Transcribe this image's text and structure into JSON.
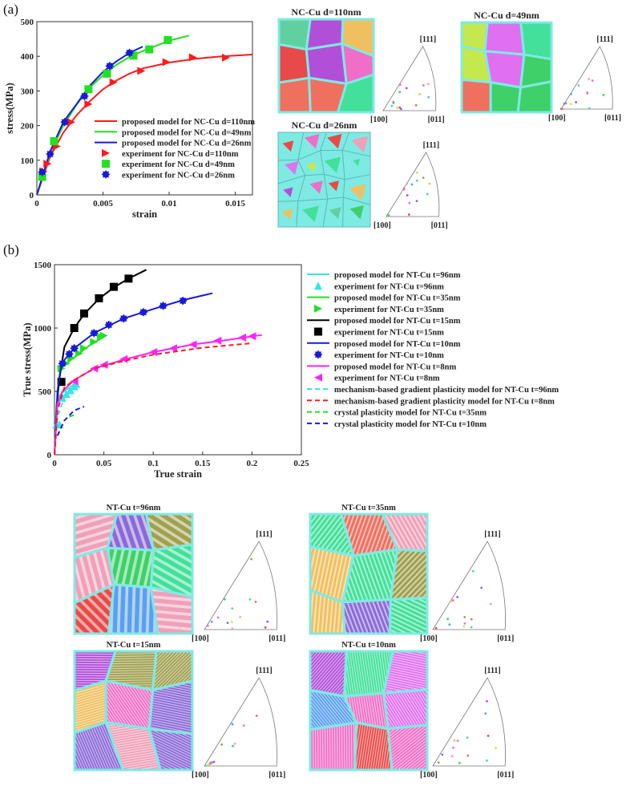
{
  "panel_labels": [
    "(a)",
    "(b)"
  ],
  "chart_data": [
    {
      "type": "line",
      "xlabel": "strain",
      "ylabel": "stress(MPa)",
      "xlim": [
        0,
        0.0163
      ],
      "ylim": [
        0,
        500
      ],
      "xticks": [
        "0",
        "0.005",
        "0.01",
        "0.015"
      ],
      "xtickvals": [
        0,
        0.005,
        0.01,
        0.015
      ],
      "yticks": [
        "0",
        "100",
        "200",
        "300",
        "400",
        "500"
      ],
      "ytickvals": [
        0,
        100,
        200,
        300,
        400,
        500
      ],
      "legend": "center-right",
      "series": [
        {
          "name": "proposed model for NC-Cu d=110nm",
          "style": "line",
          "color": "#ff1a1a",
          "points": [
            [
              0,
              0
            ],
            [
              0.001,
              110
            ],
            [
              0.002,
              180
            ],
            [
              0.003,
              230
            ],
            [
              0.004,
              270
            ],
            [
              0.005,
              305
            ],
            [
              0.006,
              330
            ],
            [
              0.007,
              350
            ],
            [
              0.008,
              365
            ],
            [
              0.01,
              382
            ],
            [
              0.012,
              393
            ],
            [
              0.014,
              400
            ],
            [
              0.0163,
              405
            ]
          ]
        },
        {
          "name": "proposed model for NC-Cu d=49nm",
          "style": "line",
          "color": "#22e022",
          "points": [
            [
              0,
              0
            ],
            [
              0.001,
              120
            ],
            [
              0.002,
              200
            ],
            [
              0.003,
              260
            ],
            [
              0.004,
              310
            ],
            [
              0.005,
              345
            ],
            [
              0.006,
              375
            ],
            [
              0.007,
              398
            ],
            [
              0.008,
              415
            ],
            [
              0.009,
              430
            ],
            [
              0.01,
              445
            ],
            [
              0.0115,
              460
            ]
          ]
        },
        {
          "name": "proposed model for NC-Cu d=26nm",
          "style": "line",
          "color": "#1a1ad8",
          "points": [
            [
              0,
              0
            ],
            [
              0.001,
              125
            ],
            [
              0.002,
              210
            ],
            [
              0.003,
              262
            ],
            [
              0.004,
              315
            ],
            [
              0.005,
              355
            ],
            [
              0.006,
              385
            ],
            [
              0.007,
              410
            ],
            [
              0.008,
              428
            ]
          ]
        },
        {
          "name": "experiment for NC-Cu d=110nm",
          "style": "tri-right",
          "color": "#ff1a1a",
          "points": [
            [
              0.0005,
              68
            ],
            [
              0.0008,
              90
            ],
            [
              0.0015,
              140
            ],
            [
              0.0026,
              210
            ],
            [
              0.0039,
              262
            ],
            [
              0.0058,
              325
            ],
            [
              0.0079,
              358
            ],
            [
              0.0098,
              383
            ],
            [
              0.0118,
              397
            ],
            [
              0.0143,
              396
            ]
          ]
        },
        {
          "name": "experiment for NC-Cu d=49nm",
          "style": "square",
          "color": "#22e022",
          "points": [
            [
              0.0004,
              52
            ],
            [
              0.0013,
              155
            ],
            [
              0.0039,
              305
            ],
            [
              0.0053,
              350
            ],
            [
              0.0073,
              402
            ],
            [
              0.0085,
              420
            ],
            [
              0.0099,
              447
            ]
          ]
        },
        {
          "name": "experiment for NC-Cu d=26nm",
          "style": "star",
          "color": "#1a1ad8",
          "points": [
            [
              0.0004,
              66
            ],
            [
              0.001,
              118
            ],
            [
              0.0021,
              210
            ],
            [
              0.0036,
              285
            ],
            [
              0.0055,
              372
            ],
            [
              0.007,
              410
            ]
          ]
        }
      ]
    },
    {
      "type": "line",
      "xlabel": "True strain",
      "ylabel": "True stress(MPa)",
      "xlim": [
        0,
        0.25
      ],
      "ylim": [
        0,
        1500
      ],
      "xticks": [
        "0",
        "0.05",
        "0.1",
        "0.15",
        "0.2",
        "0.25"
      ],
      "xtickvals": [
        0,
        0.05,
        0.1,
        0.15,
        0.2,
        0.25
      ],
      "yticks": [
        "0",
        "500",
        "1000",
        "1500"
      ],
      "ytickvals": [
        0,
        500,
        1000,
        1500
      ],
      "legend": "outside-right",
      "series": [
        {
          "name": "proposed model for NT-Cu t=96nm",
          "style": "line",
          "color": "#33e6e6",
          "points": [
            [
              0,
              0
            ],
            [
              0.002,
              400
            ],
            [
              0.005,
              470
            ],
            [
              0.01,
              500
            ],
            [
              0.02,
              560
            ]
          ]
        },
        {
          "name": "experiment for NT-Cu t=96nm",
          "style": "tri-up",
          "color": "#33e6e6",
          "points": [
            [
              0.002,
              240
            ],
            [
              0.005,
              240
            ],
            [
              0.008,
              450
            ],
            [
              0.012,
              480
            ],
            [
              0.016,
              510
            ],
            [
              0.02,
              540
            ],
            [
              0.022,
              560
            ]
          ]
        },
        {
          "name": "proposed model for NT-Cu t=35nm",
          "style": "line",
          "color": "#22e022",
          "points": [
            [
              0,
              0
            ],
            [
              0.003,
              500
            ],
            [
              0.006,
              680
            ],
            [
              0.02,
              770
            ],
            [
              0.035,
              860
            ],
            [
              0.052,
              940
            ]
          ]
        },
        {
          "name": "experiment for NT-Cu t=35nm",
          "style": "tri-right",
          "color": "#22e022",
          "points": [
            [
              0.007,
              680
            ],
            [
              0.012,
              720
            ],
            [
              0.017,
              760
            ],
            [
              0.025,
              800
            ],
            [
              0.03,
              840
            ],
            [
              0.04,
              890
            ],
            [
              0.047,
              930
            ],
            [
              0.05,
              940
            ]
          ]
        },
        {
          "name": "proposed model for NT-Cu t=15nm",
          "style": "line",
          "color": "#000000",
          "points": [
            [
              0,
              0
            ],
            [
              0.003,
              450
            ],
            [
              0.005,
              600
            ],
            [
              0.01,
              850
            ],
            [
              0.02,
              1000
            ],
            [
              0.03,
              1110
            ],
            [
              0.045,
              1230
            ],
            [
              0.06,
              1320
            ],
            [
              0.075,
              1390
            ],
            [
              0.093,
              1460
            ]
          ]
        },
        {
          "name": "experiment for NT-Cu t=15nm",
          "style": "square",
          "color": "#000000",
          "points": [
            [
              0.007,
              575
            ],
            [
              0.02,
              1000
            ],
            [
              0.03,
              1115
            ],
            [
              0.045,
              1235
            ],
            [
              0.06,
              1325
            ],
            [
              0.075,
              1390
            ]
          ]
        },
        {
          "name": "proposed model for NT-Cu t=10nm",
          "style": "line",
          "color": "#1a1ad8",
          "points": [
            [
              0,
              0
            ],
            [
              0.003,
              500
            ],
            [
              0.007,
              720
            ],
            [
              0.02,
              840
            ],
            [
              0.04,
              960
            ],
            [
              0.07,
              1075
            ],
            [
              0.1,
              1150
            ],
            [
              0.13,
              1220
            ],
            [
              0.16,
              1275
            ]
          ]
        },
        {
          "name": "experiment for NT-Cu t=10nm",
          "style": "star",
          "color": "#1a1ad8",
          "points": [
            [
              0.008,
              720
            ],
            [
              0.015,
              795
            ],
            [
              0.02,
              840
            ],
            [
              0.04,
              960
            ],
            [
              0.055,
              1025
            ],
            [
              0.07,
              1075
            ],
            [
              0.09,
              1125
            ],
            [
              0.11,
              1175
            ],
            [
              0.13,
              1215
            ]
          ]
        },
        {
          "name": "proposed model for NT-Cu t=8nm",
          "style": "line",
          "color": "#ff22ff",
          "points": [
            [
              0,
              0
            ],
            [
              0.003,
              400
            ],
            [
              0.008,
              500
            ],
            [
              0.02,
              590
            ],
            [
              0.04,
              680
            ],
            [
              0.07,
              750
            ],
            [
              0.1,
              810
            ],
            [
              0.14,
              870
            ],
            [
              0.17,
              900
            ],
            [
              0.21,
              945
            ]
          ]
        },
        {
          "name": "experiment for NT-Cu t=8nm",
          "style": "tri-left",
          "color": "#ff22ff",
          "points": [
            [
              0.02,
              580
            ],
            [
              0.04,
              680
            ],
            [
              0.05,
              710
            ],
            [
              0.07,
              755
            ],
            [
              0.1,
              810
            ],
            [
              0.12,
              840
            ],
            [
              0.14,
              870
            ],
            [
              0.165,
              900
            ],
            [
              0.19,
              925
            ],
            [
              0.2,
              935
            ]
          ]
        },
        {
          "name": "mechanism-based gradient plasticity model for NT-Cu t=96nm",
          "style": "dash",
          "color": "#33e6e6",
          "points": [
            [
              0,
              0
            ],
            [
              0.003,
              300
            ],
            [
              0.01,
              450
            ],
            [
              0.02,
              520
            ]
          ]
        },
        {
          "name": "mechanism-based gradient plasticity model for NT-Cu t=8nm",
          "style": "dash",
          "color": "#ff1a1a",
          "points": [
            [
              0,
              0
            ],
            [
              0.003,
              350
            ],
            [
              0.01,
              530
            ],
            [
              0.02,
              590
            ],
            [
              0.04,
              680
            ],
            [
              0.07,
              740
            ],
            [
              0.1,
              790
            ],
            [
              0.15,
              845
            ],
            [
              0.2,
              880
            ]
          ]
        },
        {
          "name": "crystal plasticity model for NT-Cu t=35nm",
          "style": "dash",
          "color": "#22e022",
          "points": [
            [
              0.015,
              300
            ],
            [
              0.022,
              320
            ]
          ]
        },
        {
          "name": "crystal plasticity model for NT-Cu t=10nm",
          "style": "dash",
          "color": "#1a1ad8",
          "points": [
            [
              0.003,
              150
            ],
            [
              0.01,
              270
            ],
            [
              0.02,
              350
            ],
            [
              0.03,
              380
            ]
          ]
        }
      ]
    }
  ],
  "microstructures": [
    {
      "title": "NC-Cu d=110nm",
      "kind": "nc"
    },
    {
      "title": "NC-Cu d=49nm",
      "kind": "nc"
    },
    {
      "title": "NC-Cu d=26nm",
      "kind": "nc-small"
    },
    {
      "title": "NT-Cu t=96nm",
      "kind": "nt"
    },
    {
      "title": "NT-Cu t=35nm",
      "kind": "nt"
    },
    {
      "title": "NT-Cu t=15nm",
      "kind": "nt"
    },
    {
      "title": "NT-Cu t=10nm",
      "kind": "nt"
    }
  ],
  "pole_figure_labels": {
    "top": "[111]",
    "left": "[100]",
    "right": "[011]"
  }
}
